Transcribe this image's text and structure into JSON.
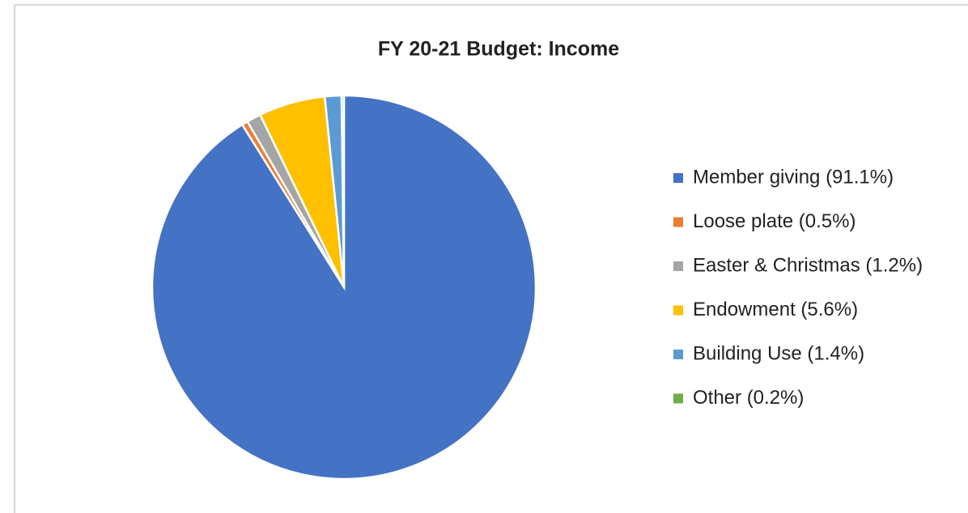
{
  "chart_data": {
    "type": "pie",
    "title": "FY 20-21 Budget: Income",
    "categories": [
      "Member giving (91.1%)",
      "Loose plate (0.5%)",
      "Easter & Christmas (1.2%)",
      "Endowment (5.6%)",
      "Building Use (1.4%)",
      "Other (0.2%)"
    ],
    "values": [
      91.1,
      0.5,
      1.2,
      5.6,
      1.4,
      0.2
    ],
    "colors": [
      "#4472c4",
      "#ed7d31",
      "#a5a5a5",
      "#ffc000",
      "#5b9bd5",
      "#70ad47"
    ],
    "legend": "right"
  }
}
